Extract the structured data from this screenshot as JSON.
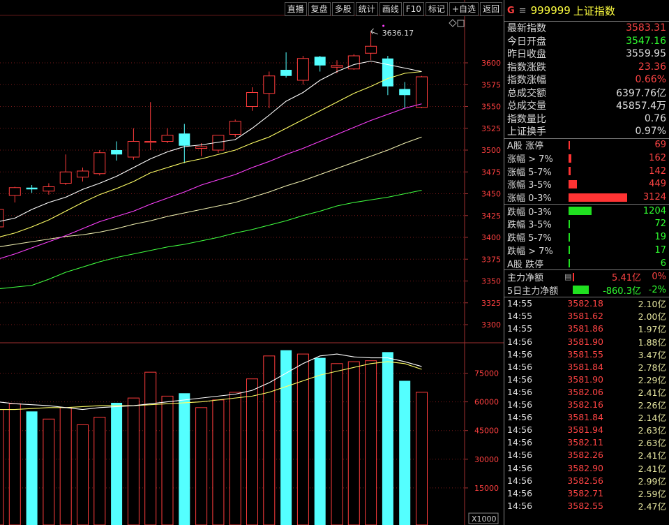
{
  "toolbar": {
    "buttons": [
      "直播",
      "复盘",
      "多股",
      "统计",
      "画线",
      "F10",
      "标记",
      "+自选",
      "返回"
    ]
  },
  "header": {
    "prefix": "G",
    "menu": "≡",
    "code": "999999",
    "name": "上证指数"
  },
  "quote": [
    {
      "label": "最新指数",
      "value": "3583.31",
      "color": "red"
    },
    {
      "label": "今日开盘",
      "value": "3547.16",
      "color": "green"
    },
    {
      "label": "昨日收盘",
      "value": "3559.95",
      "color": "white"
    },
    {
      "label": "指数涨跌",
      "value": "23.36",
      "color": "red"
    },
    {
      "label": "指数涨幅",
      "value": "0.66%",
      "color": "red"
    },
    {
      "label": "总成交额",
      "value": "6397.76亿",
      "color": "white"
    },
    {
      "label": "总成交量",
      "value": "45857.4万",
      "color": "white"
    },
    {
      "label": "指数量比",
      "value": "0.76",
      "color": "white"
    },
    {
      "label": "上证换手",
      "value": "0.97%",
      "color": "white"
    }
  ],
  "breadth_up": [
    {
      "label": "A股 涨停",
      "value": "69",
      "fill": 0.02
    },
    {
      "label": "涨幅 > 7%",
      "value": "162",
      "fill": 0.05
    },
    {
      "label": "涨幅 5-7%",
      "value": "142",
      "fill": 0.04
    },
    {
      "label": "涨幅 3-5%",
      "value": "449",
      "fill": 0.14
    },
    {
      "label": "涨幅 0-3%",
      "value": "3124",
      "fill": 1.0
    }
  ],
  "breadth_down": [
    {
      "label": "跌幅 0-3%",
      "value": "1204",
      "fill": 0.39
    },
    {
      "label": "跌幅 3-5%",
      "value": "72",
      "fill": 0.02
    },
    {
      "label": "跌幅 5-7%",
      "value": "19",
      "fill": 0.01
    },
    {
      "label": "跌幅 > 7%",
      "value": "17",
      "fill": 0.01
    },
    {
      "label": "A股 跌停",
      "value": "6",
      "fill": 0.005
    }
  ],
  "capital": [
    {
      "label": "主力净额",
      "icon": "▤",
      "value": "5.41亿",
      "pct": "0%",
      "color": "red",
      "bar": "red",
      "fill": 0.03
    },
    {
      "label": "5日主力净额",
      "icon": "",
      "value": "-860.3亿",
      "pct": "-2%",
      "color": "green",
      "bar": "green",
      "fill": 0.6
    }
  ],
  "ticks": [
    {
      "time": "14:55",
      "price": "3582.18",
      "amount": "2.10亿"
    },
    {
      "time": "14:55",
      "price": "3581.62",
      "amount": "2.00亿"
    },
    {
      "time": "14:55",
      "price": "3581.86",
      "amount": "1.97亿"
    },
    {
      "time": "14:56",
      "price": "3581.90",
      "amount": "1.88亿"
    },
    {
      "time": "14:56",
      "price": "3581.55",
      "amount": "3.47亿"
    },
    {
      "time": "14:56",
      "price": "3581.84",
      "amount": "2.78亿"
    },
    {
      "time": "14:56",
      "price": "3581.90",
      "amount": "2.29亿"
    },
    {
      "time": "14:56",
      "price": "3582.06",
      "amount": "2.41亿"
    },
    {
      "time": "14:56",
      "price": "3582.16",
      "amount": "2.26亿"
    },
    {
      "time": "14:56",
      "price": "3581.84",
      "amount": "2.14亿"
    },
    {
      "time": "14:56",
      "price": "3581.94",
      "amount": "2.63亿"
    },
    {
      "time": "14:56",
      "price": "3582.11",
      "amount": "2.63亿"
    },
    {
      "time": "14:56",
      "price": "3582.26",
      "amount": "2.41亿"
    },
    {
      "time": "14:56",
      "price": "3582.90",
      "amount": "2.41亿"
    },
    {
      "time": "14:56",
      "price": "3582.56",
      "amount": "2.99亿"
    },
    {
      "time": "14:56",
      "price": "3582.71",
      "amount": "2.59亿"
    },
    {
      "time": "14:56",
      "price": "3582.55",
      "amount": "2.47亿"
    }
  ],
  "chart_data": {
    "type": "candlestick",
    "price_axis": {
      "ticks": [
        3300,
        3325,
        3350,
        3375,
        3400,
        3425,
        3450,
        3475,
        3500,
        3525,
        3550,
        3575,
        3600
      ]
    },
    "annotation": "3636.17",
    "volume_axis": {
      "ticks": [
        15000,
        30000,
        45000,
        60000,
        75000
      ],
      "unit": "X1000"
    },
    "colors": {
      "up": "#ff3c3c",
      "down": "#54ffff",
      "ma5": "#ffffff",
      "ma10": "#ffff66",
      "ma20": "#ff40ff",
      "ma30": "#f0f0b0",
      "ma60": "#40ff40"
    },
    "candles": [
      {
        "o": 3412,
        "h": 3435,
        "l": 3405,
        "c": 3432,
        "v": 56000
      },
      {
        "o": 3448,
        "h": 3458,
        "l": 3440,
        "c": 3457,
        "v": 59000
      },
      {
        "o": 3457,
        "h": 3460,
        "l": 3451,
        "c": 3455,
        "v": 55000
      },
      {
        "o": 3453,
        "h": 3462,
        "l": 3449,
        "c": 3458,
        "v": 51000
      },
      {
        "o": 3462,
        "h": 3495,
        "l": 3460,
        "c": 3475,
        "v": 57000
      },
      {
        "o": 3469,
        "h": 3480,
        "l": 3464,
        "c": 3476,
        "v": 48000
      },
      {
        "o": 3473,
        "h": 3500,
        "l": 3471,
        "c": 3497,
        "v": 52000
      },
      {
        "o": 3500,
        "h": 3510,
        "l": 3488,
        "c": 3495,
        "v": 59500
      },
      {
        "o": 3492,
        "h": 3525,
        "l": 3489,
        "c": 3510,
        "v": 62000
      },
      {
        "o": 3510,
        "h": 3555,
        "l": 3500,
        "c": 3510,
        "v": 75500
      },
      {
        "o": 3510,
        "h": 3525,
        "l": 3508,
        "c": 3517,
        "v": 63000
      },
      {
        "o": 3519,
        "h": 3530,
        "l": 3485,
        "c": 3505,
        "v": 64500
      },
      {
        "o": 3502,
        "h": 3508,
        "l": 3493,
        "c": 3504,
        "v": 57000
      },
      {
        "o": 3500,
        "h": 3515,
        "l": 3497,
        "c": 3517,
        "v": 61000
      },
      {
        "o": 3518,
        "h": 3535,
        "l": 3515,
        "c": 3533,
        "v": 65000
      },
      {
        "o": 3550,
        "h": 3572,
        "l": 3545,
        "c": 3566,
        "v": 72000
      },
      {
        "o": 3565,
        "h": 3590,
        "l": 3548,
        "c": 3585,
        "v": 84000
      },
      {
        "o": 3592,
        "h": 3612,
        "l": 3583,
        "c": 3585,
        "v": 87000
      },
      {
        "o": 3580,
        "h": 3608,
        "l": 3575,
        "c": 3605,
        "v": 85000
      },
      {
        "o": 3607,
        "h": 3608,
        "l": 3590,
        "c": 3597,
        "v": 83000
      },
      {
        "o": 3595,
        "h": 3603,
        "l": 3588,
        "c": 3597,
        "v": 80000
      },
      {
        "o": 3593,
        "h": 3610,
        "l": 3592,
        "c": 3608,
        "v": 81000
      },
      {
        "o": 3611,
        "h": 3636,
        "l": 3603,
        "c": 3619,
        "v": 81500
      },
      {
        "o": 3605,
        "h": 3608,
        "l": 3563,
        "c": 3573,
        "v": 86000
      },
      {
        "o": 3570,
        "h": 3578,
        "l": 3548,
        "c": 3563,
        "v": 71000
      },
      {
        "o": 3549,
        "h": 3585,
        "l": 3548,
        "c": 3584,
        "v": 65000
      }
    ],
    "ma5": [
      3418,
      3422,
      3432,
      3440,
      3446,
      3455,
      3462,
      3470,
      3480,
      3490,
      3498,
      3504,
      3506,
      3509,
      3512,
      3525,
      3540,
      3556,
      3566,
      3580,
      3590,
      3598,
      3602,
      3598,
      3594,
      3590
    ],
    "ma10": [
      3400,
      3405,
      3412,
      3420,
      3430,
      3440,
      3449,
      3456,
      3464,
      3474,
      3480,
      3486,
      3490,
      3495,
      3500,
      3508,
      3515,
      3525,
      3535,
      3545,
      3555,
      3565,
      3573,
      3582,
      3588,
      3590
    ],
    "ma20": [
      3375,
      3381,
      3388,
      3395,
      3402,
      3410,
      3418,
      3424,
      3430,
      3438,
      3445,
      3452,
      3460,
      3466,
      3472,
      3480,
      3487,
      3495,
      3502,
      3510,
      3518,
      3526,
      3534,
      3541,
      3548,
      3553
    ],
    "ma30": [
      3389,
      3392,
      3395,
      3398,
      3401,
      3403,
      3406,
      3410,
      3415,
      3419,
      3424,
      3428,
      3432,
      3436,
      3440,
      3446,
      3452,
      3459,
      3465,
      3472,
      3479,
      3486,
      3493,
      3500,
      3508,
      3515
    ],
    "ma60": [
      3341,
      3343,
      3345,
      3352,
      3360,
      3366,
      3372,
      3377,
      3381,
      3385,
      3389,
      3392,
      3396,
      3400,
      3405,
      3409,
      3414,
      3419,
      3425,
      3430,
      3436,
      3440,
      3443,
      3446,
      3450,
      3454
    ],
    "vol_ma5": [
      60000,
      59000,
      58500,
      58000,
      57000,
      56000,
      57000,
      57500,
      58000,
      59000,
      60000,
      61000,
      62000,
      63000,
      64000,
      66000,
      70000,
      75000,
      80000,
      84000,
      85000,
      83500,
      83000,
      83000,
      81000,
      78500
    ],
    "vol_ma10": [
      56000,
      56000,
      56500,
      57000,
      57000,
      57500,
      58000,
      58000,
      58000,
      58500,
      59000,
      59500,
      60000,
      61000,
      62000,
      63000,
      65000,
      68000,
      71000,
      74000,
      76000,
      78000,
      80000,
      81000,
      80000,
      77000
    ]
  }
}
